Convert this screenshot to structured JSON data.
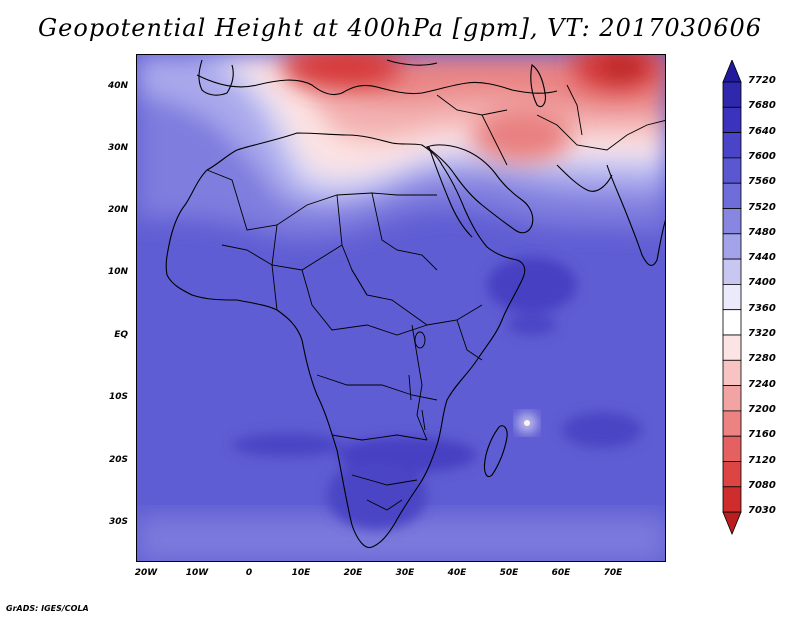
{
  "title": "Geopotential Height at 400hPa [gpm], VT: 2017030606",
  "credit": "GrADS: IGES/COLA",
  "map": {
    "lat_ticks": [
      "40N",
      "30N",
      "20N",
      "10N",
      "EQ",
      "10S",
      "20S",
      "30S"
    ],
    "lon_ticks": [
      "20W",
      "10W",
      "0",
      "10E",
      "20E",
      "30E",
      "40E",
      "50E",
      "60E",
      "70E"
    ]
  },
  "colorbar": {
    "labels": [
      "7720",
      "7680",
      "7640",
      "7600",
      "7560",
      "7520",
      "7480",
      "7440",
      "7400",
      "7360",
      "7320",
      "7280",
      "7240",
      "7200",
      "7160",
      "7120",
      "7080",
      "7030"
    ],
    "colors": [
      "#221a9c",
      "#2f28ad",
      "#3b33bd",
      "#4a44c8",
      "#5b57d0",
      "#6f6dd9",
      "#8787e1",
      "#a3a3e9",
      "#c7c7f2",
      "#eaeafb",
      "#ffffff",
      "#fde4e4",
      "#f8c3c3",
      "#f2a3a3",
      "#ec8282",
      "#e56161",
      "#dd4444",
      "#cf2d2d",
      "#b81e1e"
    ]
  }
}
